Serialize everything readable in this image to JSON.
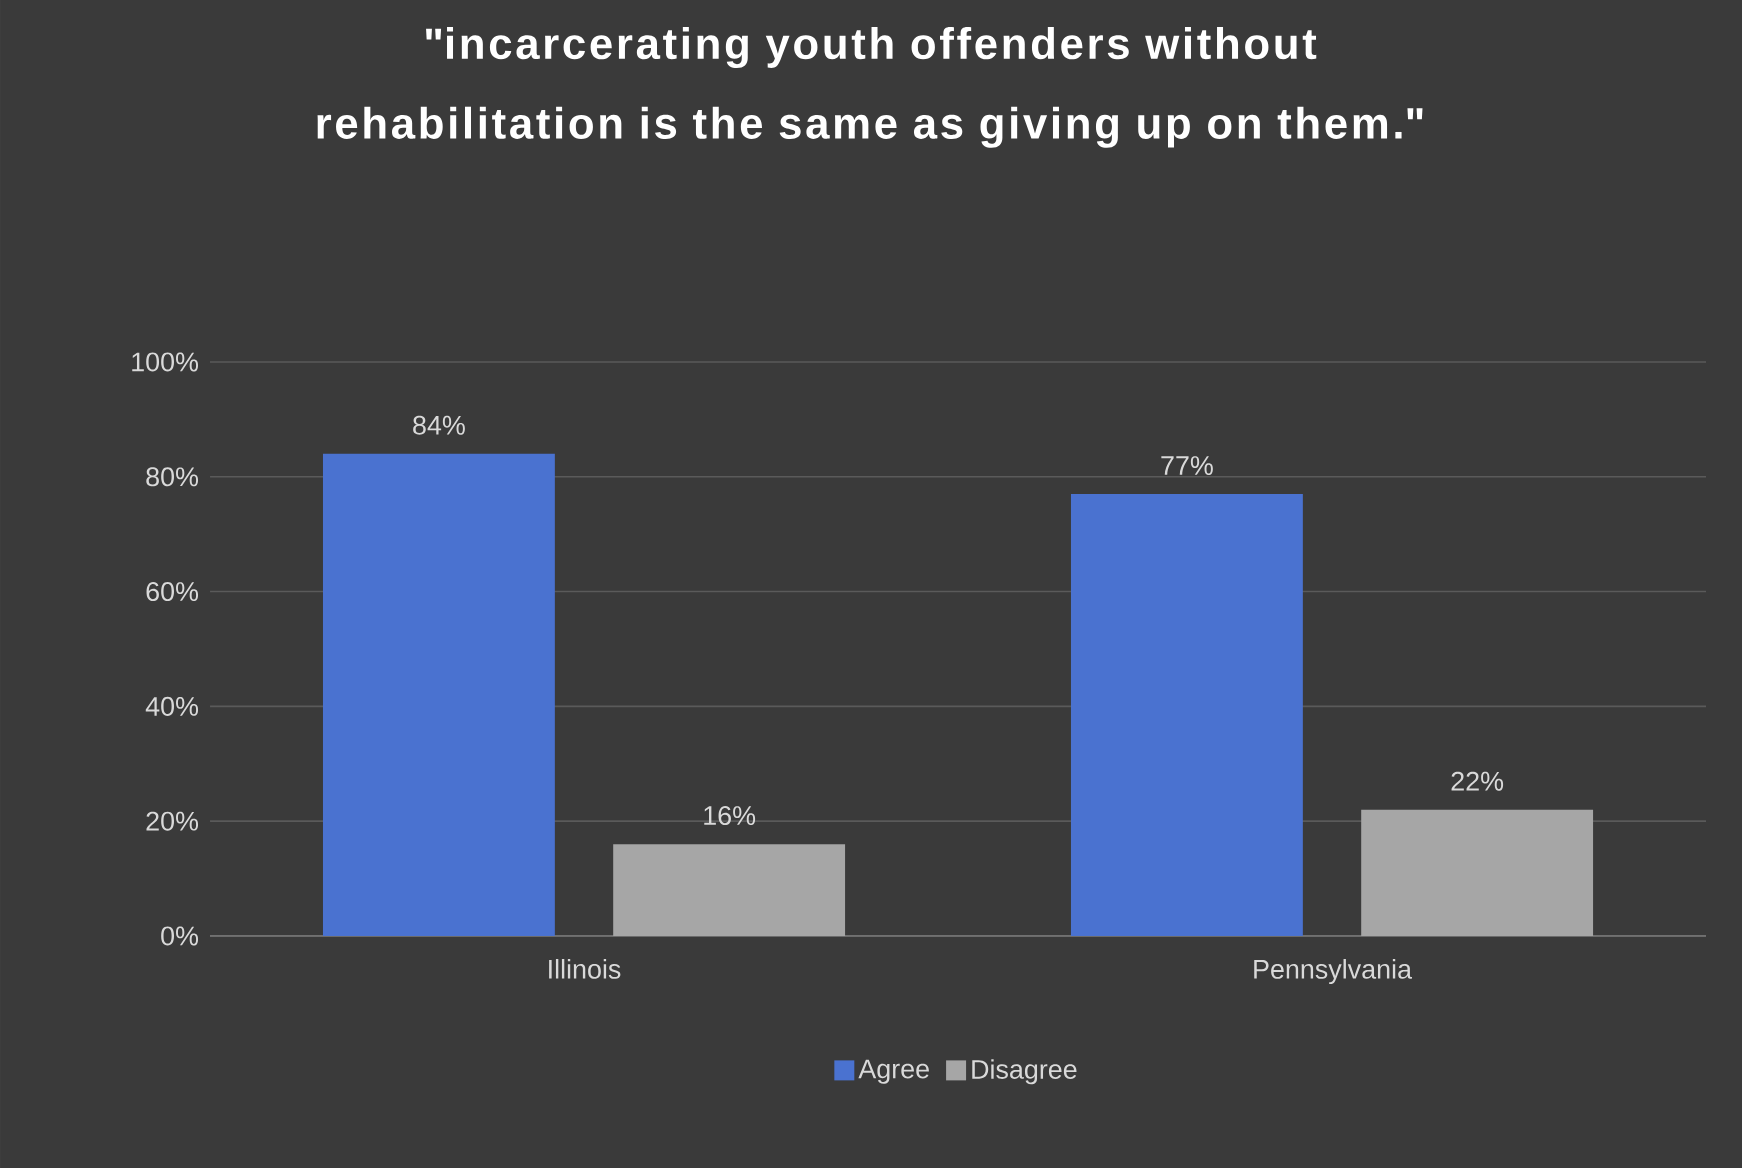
{
  "chart_data": {
    "type": "bar",
    "title": "\"incarcerating youth offenders without rehabilitation is the same as giving up on them.\"",
    "categories": [
      "Illinois",
      "Pennsylvania"
    ],
    "series": [
      {
        "name": "Agree",
        "color": "#4a72d0",
        "values": [
          84,
          77
        ],
        "value_labels": [
          "84%",
          "77%"
        ]
      },
      {
        "name": "Disagree",
        "color": "#a6a6a6",
        "values": [
          16,
          22
        ],
        "value_labels": [
          "16%",
          "22%"
        ]
      }
    ],
    "ylim": [
      0,
      100
    ],
    "yticks": [
      {
        "value": 0,
        "label": "0%"
      },
      {
        "value": 20,
        "label": "20%"
      },
      {
        "value": 40,
        "label": "40%"
      },
      {
        "value": 60,
        "label": "60%"
      },
      {
        "value": 80,
        "label": "80%"
      },
      {
        "value": 100,
        "label": "100%"
      }
    ],
    "grid": "y",
    "legend": "bottom"
  }
}
